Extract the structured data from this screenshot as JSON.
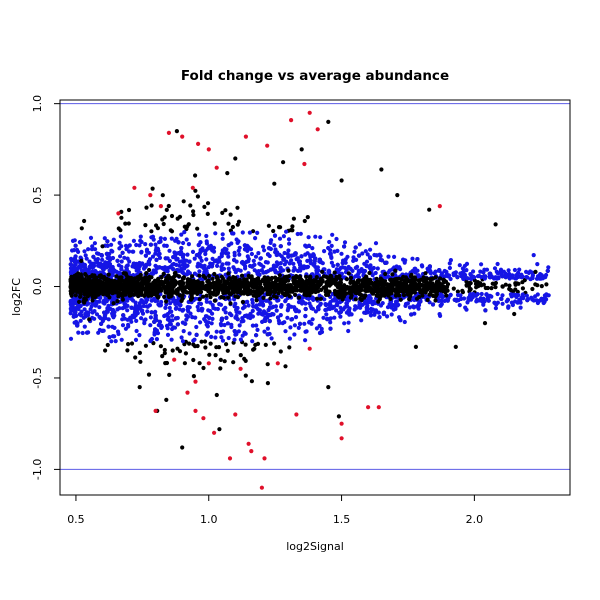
{
  "chart_data": {
    "type": "scatter",
    "title": "Fold change vs average abundance",
    "xlabel": "log2Signal",
    "ylabel": "log2FC",
    "xlim": [
      0.44,
      2.36
    ],
    "ylim": [
      -1.14,
      1.02
    ],
    "xticks": [
      {
        "value": 0.5,
        "label": "0.5"
      },
      {
        "value": 1.0,
        "label": "1.0"
      },
      {
        "value": 1.5,
        "label": "1.5"
      },
      {
        "value": 2.0,
        "label": "2.0"
      }
    ],
    "yticks": [
      {
        "value": -1.0,
        "label": "-1.0"
      },
      {
        "value": -0.5,
        "label": "-0.5"
      },
      {
        "value": 0.0,
        "label": "0.0"
      },
      {
        "value": 0.5,
        "label": "0.5"
      },
      {
        "value": 1.0,
        "label": "1.0"
      }
    ],
    "hlines": [
      -1.0,
      1.0
    ],
    "hline_color": "#5c5ce6",
    "grid": false,
    "legend": "none",
    "colors": {
      "black": "#000000",
      "blue": "#1515e6",
      "red": "#e0102a"
    },
    "approximate_density": {
      "x_range": [
        0.48,
        2.28
      ],
      "center_band": [
        -0.05,
        0.05
      ],
      "blue_band": [
        -0.3,
        0.3
      ],
      "spread_peak_x": 1.0
    },
    "points": [
      [
        0.85,
        0.84,
        "red"
      ],
      [
        0.88,
        0.85,
        "black"
      ],
      [
        0.9,
        0.82,
        "red"
      ],
      [
        0.96,
        0.78,
        "red"
      ],
      [
        1.0,
        0.75,
        "red"
      ],
      [
        1.14,
        0.82,
        "red"
      ],
      [
        1.22,
        0.77,
        "red"
      ],
      [
        1.31,
        0.91,
        "red"
      ],
      [
        1.38,
        0.95,
        "red"
      ],
      [
        1.41,
        0.86,
        "red"
      ],
      [
        1.45,
        0.9,
        "black"
      ],
      [
        1.35,
        0.75,
        "black"
      ],
      [
        1.03,
        0.65,
        "red"
      ],
      [
        1.07,
        0.62,
        "black"
      ],
      [
        1.1,
        0.7,
        "black"
      ],
      [
        1.28,
        0.68,
        "black"
      ],
      [
        1.36,
        0.67,
        "red"
      ],
      [
        1.5,
        0.58,
        "black"
      ],
      [
        1.65,
        0.64,
        "black"
      ],
      [
        1.71,
        0.5,
        "black"
      ],
      [
        1.83,
        0.42,
        "black"
      ],
      [
        1.87,
        0.44,
        "red"
      ],
      [
        2.08,
        0.34,
        "black"
      ],
      [
        2.23,
        0.08,
        "black"
      ],
      [
        0.78,
        0.5,
        "red"
      ],
      [
        0.82,
        0.44,
        "red"
      ],
      [
        0.72,
        0.54,
        "red"
      ],
      [
        0.66,
        0.4,
        "red"
      ],
      [
        0.94,
        0.54,
        "red"
      ],
      [
        0.6,
        0.22,
        "black"
      ],
      [
        0.74,
        -0.55,
        "black"
      ],
      [
        0.8,
        -0.68,
        "red"
      ],
      [
        0.84,
        -0.62,
        "black"
      ],
      [
        0.92,
        -0.58,
        "red"
      ],
      [
        0.95,
        -0.68,
        "red"
      ],
      [
        0.98,
        -0.72,
        "red"
      ],
      [
        1.02,
        -0.8,
        "red"
      ],
      [
        1.04,
        -0.78,
        "black"
      ],
      [
        1.1,
        -0.7,
        "red"
      ],
      [
        1.15,
        -0.86,
        "red"
      ],
      [
        1.16,
        -0.9,
        "red"
      ],
      [
        1.21,
        -0.94,
        "red"
      ],
      [
        1.08,
        -0.94,
        "red"
      ],
      [
        1.2,
        -1.1,
        "red"
      ],
      [
        1.5,
        -0.83,
        "red"
      ],
      [
        1.5,
        -0.75,
        "red"
      ],
      [
        1.49,
        -0.71,
        "black"
      ],
      [
        1.6,
        -0.66,
        "red"
      ],
      [
        1.64,
        -0.66,
        "red"
      ],
      [
        1.33,
        -0.7,
        "red"
      ],
      [
        0.9,
        -0.88,
        "black"
      ],
      [
        1.0,
        -0.42,
        "red"
      ],
      [
        0.95,
        -0.52,
        "red"
      ],
      [
        1.78,
        -0.33,
        "black"
      ],
      [
        1.93,
        -0.33,
        "black"
      ],
      [
        2.04,
        -0.2,
        "black"
      ],
      [
        2.15,
        -0.15,
        "black"
      ],
      [
        1.45,
        -0.55,
        "black"
      ],
      [
        1.26,
        -0.42,
        "red"
      ],
      [
        1.38,
        -0.34,
        "red"
      ],
      [
        0.87,
        -0.4,
        "red"
      ],
      [
        1.12,
        -0.45,
        "red"
      ],
      [
        0.62,
        -0.32,
        "black"
      ],
      [
        0.55,
        -0.18,
        "black"
      ],
      [
        0.52,
        0.14,
        "black"
      ]
    ]
  }
}
